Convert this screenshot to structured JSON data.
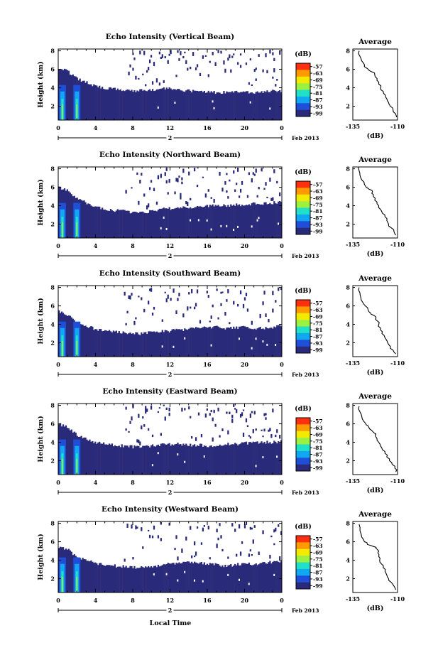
{
  "chart_data": {
    "type": "heatmap",
    "x_label": "Local Time",
    "date_label": "Feb 2013",
    "day_label": "2",
    "x_ticks": [
      "0",
      "4",
      "8",
      "12",
      "16",
      "20",
      "0"
    ],
    "y_label": "Height (km)",
    "y_ticks": [
      "2",
      "4",
      "6",
      "8"
    ],
    "ylim_km": [
      0.5,
      8.2
    ],
    "xlim_hours": [
      0,
      24
    ],
    "colorbar": {
      "unit": "(dB)",
      "labels": [
        "-57",
        "-63",
        "-69",
        "-75",
        "-81",
        "-87",
        "-93",
        "-99"
      ],
      "colors": [
        "#ff3010",
        "#ff9a00",
        "#f2ea00",
        "#9cf040",
        "#20e0c8",
        "#10a8f0",
        "#1f4fd8",
        "#2a2a7a"
      ],
      "no_data_color": "#ffffff"
    },
    "average_panel": {
      "title": "Average",
      "x_label": "(dB)",
      "x_ticks": [
        "-135",
        "-110"
      ],
      "xlim": [
        -135,
        -110
      ],
      "y_ticks": [
        "2",
        "4",
        "6",
        "8"
      ]
    },
    "panels": [
      {
        "title": "Echo Intensity (Vertical Beam)",
        "echo_top_km": [
          6.2,
          5.8,
          5.0,
          4.6,
          4.2,
          4.0,
          3.9,
          3.8,
          3.7,
          3.7,
          3.8,
          3.9,
          3.9,
          3.8,
          3.7,
          3.6,
          3.6,
          3.5,
          3.5,
          3.6,
          3.6,
          3.5,
          3.6,
          3.7,
          3.6
        ],
        "average_profile": [
          [
            -110.5,
            0.8
          ],
          [
            -111.2,
            1.2
          ],
          [
            -112.5,
            1.6
          ],
          [
            -114.0,
            2.0
          ],
          [
            -115.0,
            2.4
          ],
          [
            -116.0,
            2.8
          ],
          [
            -116.8,
            3.2
          ],
          [
            -118.0,
            3.6
          ],
          [
            -119.5,
            4.0
          ],
          [
            -120.5,
            4.4
          ],
          [
            -121.5,
            4.8
          ],
          [
            -122.5,
            5.2
          ],
          [
            -122.8,
            5.5
          ],
          [
            -124.0,
            5.7
          ],
          [
            -126.0,
            5.9
          ],
          [
            -127.0,
            6.1
          ],
          [
            -128.5,
            6.5
          ],
          [
            -130.0,
            6.9
          ],
          [
            -131.0,
            7.4
          ],
          [
            -131.5,
            8.0
          ]
        ]
      },
      {
        "title": "Echo Intensity (Northward Beam)",
        "echo_top_km": [
          6.0,
          5.6,
          4.8,
          4.3,
          3.9,
          3.6,
          3.5,
          3.4,
          3.3,
          3.3,
          3.4,
          3.6,
          3.7,
          3.8,
          3.8,
          3.9,
          4.0,
          4.1,
          4.0,
          4.1,
          4.1,
          4.2,
          4.2,
          4.3,
          4.4
        ],
        "average_profile": [
          [
            -111.0,
            0.8
          ],
          [
            -112.0,
            1.2
          ],
          [
            -113.5,
            1.6
          ],
          [
            -115.0,
            2.0
          ],
          [
            -116.0,
            2.4
          ],
          [
            -117.0,
            2.8
          ],
          [
            -118.5,
            3.2
          ],
          [
            -119.5,
            3.6
          ],
          [
            -120.5,
            4.0
          ],
          [
            -121.5,
            4.4
          ],
          [
            -122.5,
            4.8
          ],
          [
            -123.5,
            5.2
          ],
          [
            -124.0,
            5.5
          ],
          [
            -126.0,
            5.8
          ],
          [
            -127.5,
            6.0
          ],
          [
            -128.5,
            6.3
          ],
          [
            -130.0,
            6.8
          ],
          [
            -131.0,
            7.3
          ],
          [
            -131.5,
            7.8
          ],
          [
            -132.0,
            8.2
          ]
        ]
      },
      {
        "title": "Echo Intensity (Southward Beam)",
        "echo_top_km": [
          5.4,
          5.0,
          4.2,
          3.8,
          3.5,
          3.3,
          3.2,
          3.1,
          3.0,
          3.0,
          3.1,
          3.2,
          3.3,
          3.4,
          3.5,
          3.6,
          3.7,
          3.7,
          3.6,
          3.6,
          3.7,
          3.6,
          3.6,
          3.7,
          3.8
        ],
        "average_profile": [
          [
            -111.0,
            0.8
          ],
          [
            -112.5,
            1.2
          ],
          [
            -114.0,
            1.6
          ],
          [
            -115.5,
            2.0
          ],
          [
            -116.5,
            2.4
          ],
          [
            -117.5,
            2.8
          ],
          [
            -118.5,
            3.2
          ],
          [
            -119.5,
            3.6
          ],
          [
            -120.5,
            4.0
          ],
          [
            -121.5,
            4.4
          ],
          [
            -122.0,
            4.7
          ],
          [
            -123.5,
            5.0
          ],
          [
            -125.0,
            5.2
          ],
          [
            -126.5,
            5.6
          ],
          [
            -128.0,
            6.0
          ],
          [
            -129.5,
            6.4
          ],
          [
            -130.5,
            6.9
          ],
          [
            -131.0,
            7.4
          ],
          [
            -131.5,
            8.0
          ]
        ]
      },
      {
        "title": "Echo Intensity (Eastward Beam)",
        "echo_top_km": [
          6.0,
          5.6,
          4.8,
          4.4,
          4.0,
          3.8,
          3.7,
          3.6,
          3.5,
          3.5,
          3.6,
          3.7,
          3.8,
          3.8,
          3.7,
          3.7,
          3.6,
          3.7,
          3.8,
          3.8,
          3.9,
          3.9,
          4.0,
          4.0,
          4.1
        ],
        "average_profile": [
          [
            -111.0,
            0.8
          ],
          [
            -111.5,
            1.2
          ],
          [
            -113.0,
            1.6
          ],
          [
            -114.5,
            2.0
          ],
          [
            -116.0,
            2.4
          ],
          [
            -117.0,
            2.8
          ],
          [
            -118.5,
            3.2
          ],
          [
            -119.5,
            3.6
          ],
          [
            -120.5,
            4.0
          ],
          [
            -121.5,
            4.4
          ],
          [
            -122.5,
            4.8
          ],
          [
            -123.0,
            5.0
          ],
          [
            -124.5,
            5.3
          ],
          [
            -126.0,
            5.6
          ],
          [
            -127.5,
            5.9
          ],
          [
            -129.0,
            6.3
          ],
          [
            -130.0,
            6.8
          ],
          [
            -131.0,
            7.3
          ],
          [
            -131.5,
            7.9
          ]
        ]
      },
      {
        "title": "Echo Intensity (Westward Beam)",
        "echo_top_km": [
          5.5,
          5.2,
          4.4,
          4.0,
          3.7,
          3.5,
          3.4,
          3.3,
          3.2,
          3.2,
          3.3,
          3.5,
          3.6,
          3.7,
          3.8,
          3.8,
          3.6,
          3.5,
          3.4,
          3.5,
          3.6,
          3.6,
          3.7,
          3.8,
          3.8
        ],
        "average_profile": [
          [
            -111.0,
            0.8
          ],
          [
            -112.0,
            1.2
          ],
          [
            -113.5,
            1.6
          ],
          [
            -115.0,
            2.0
          ],
          [
            -116.0,
            2.4
          ],
          [
            -117.0,
            2.8
          ],
          [
            -118.0,
            3.2
          ],
          [
            -119.0,
            3.6
          ],
          [
            -120.0,
            4.0
          ],
          [
            -120.5,
            4.4
          ],
          [
            -121.0,
            4.8
          ],
          [
            -121.5,
            5.2
          ],
          [
            -122.0,
            5.4
          ],
          [
            -125.0,
            5.6
          ],
          [
            -127.0,
            5.8
          ],
          [
            -128.5,
            6.0
          ],
          [
            -130.0,
            6.5
          ],
          [
            -131.0,
            7.2
          ],
          [
            -131.5,
            7.9
          ]
        ]
      }
    ]
  }
}
